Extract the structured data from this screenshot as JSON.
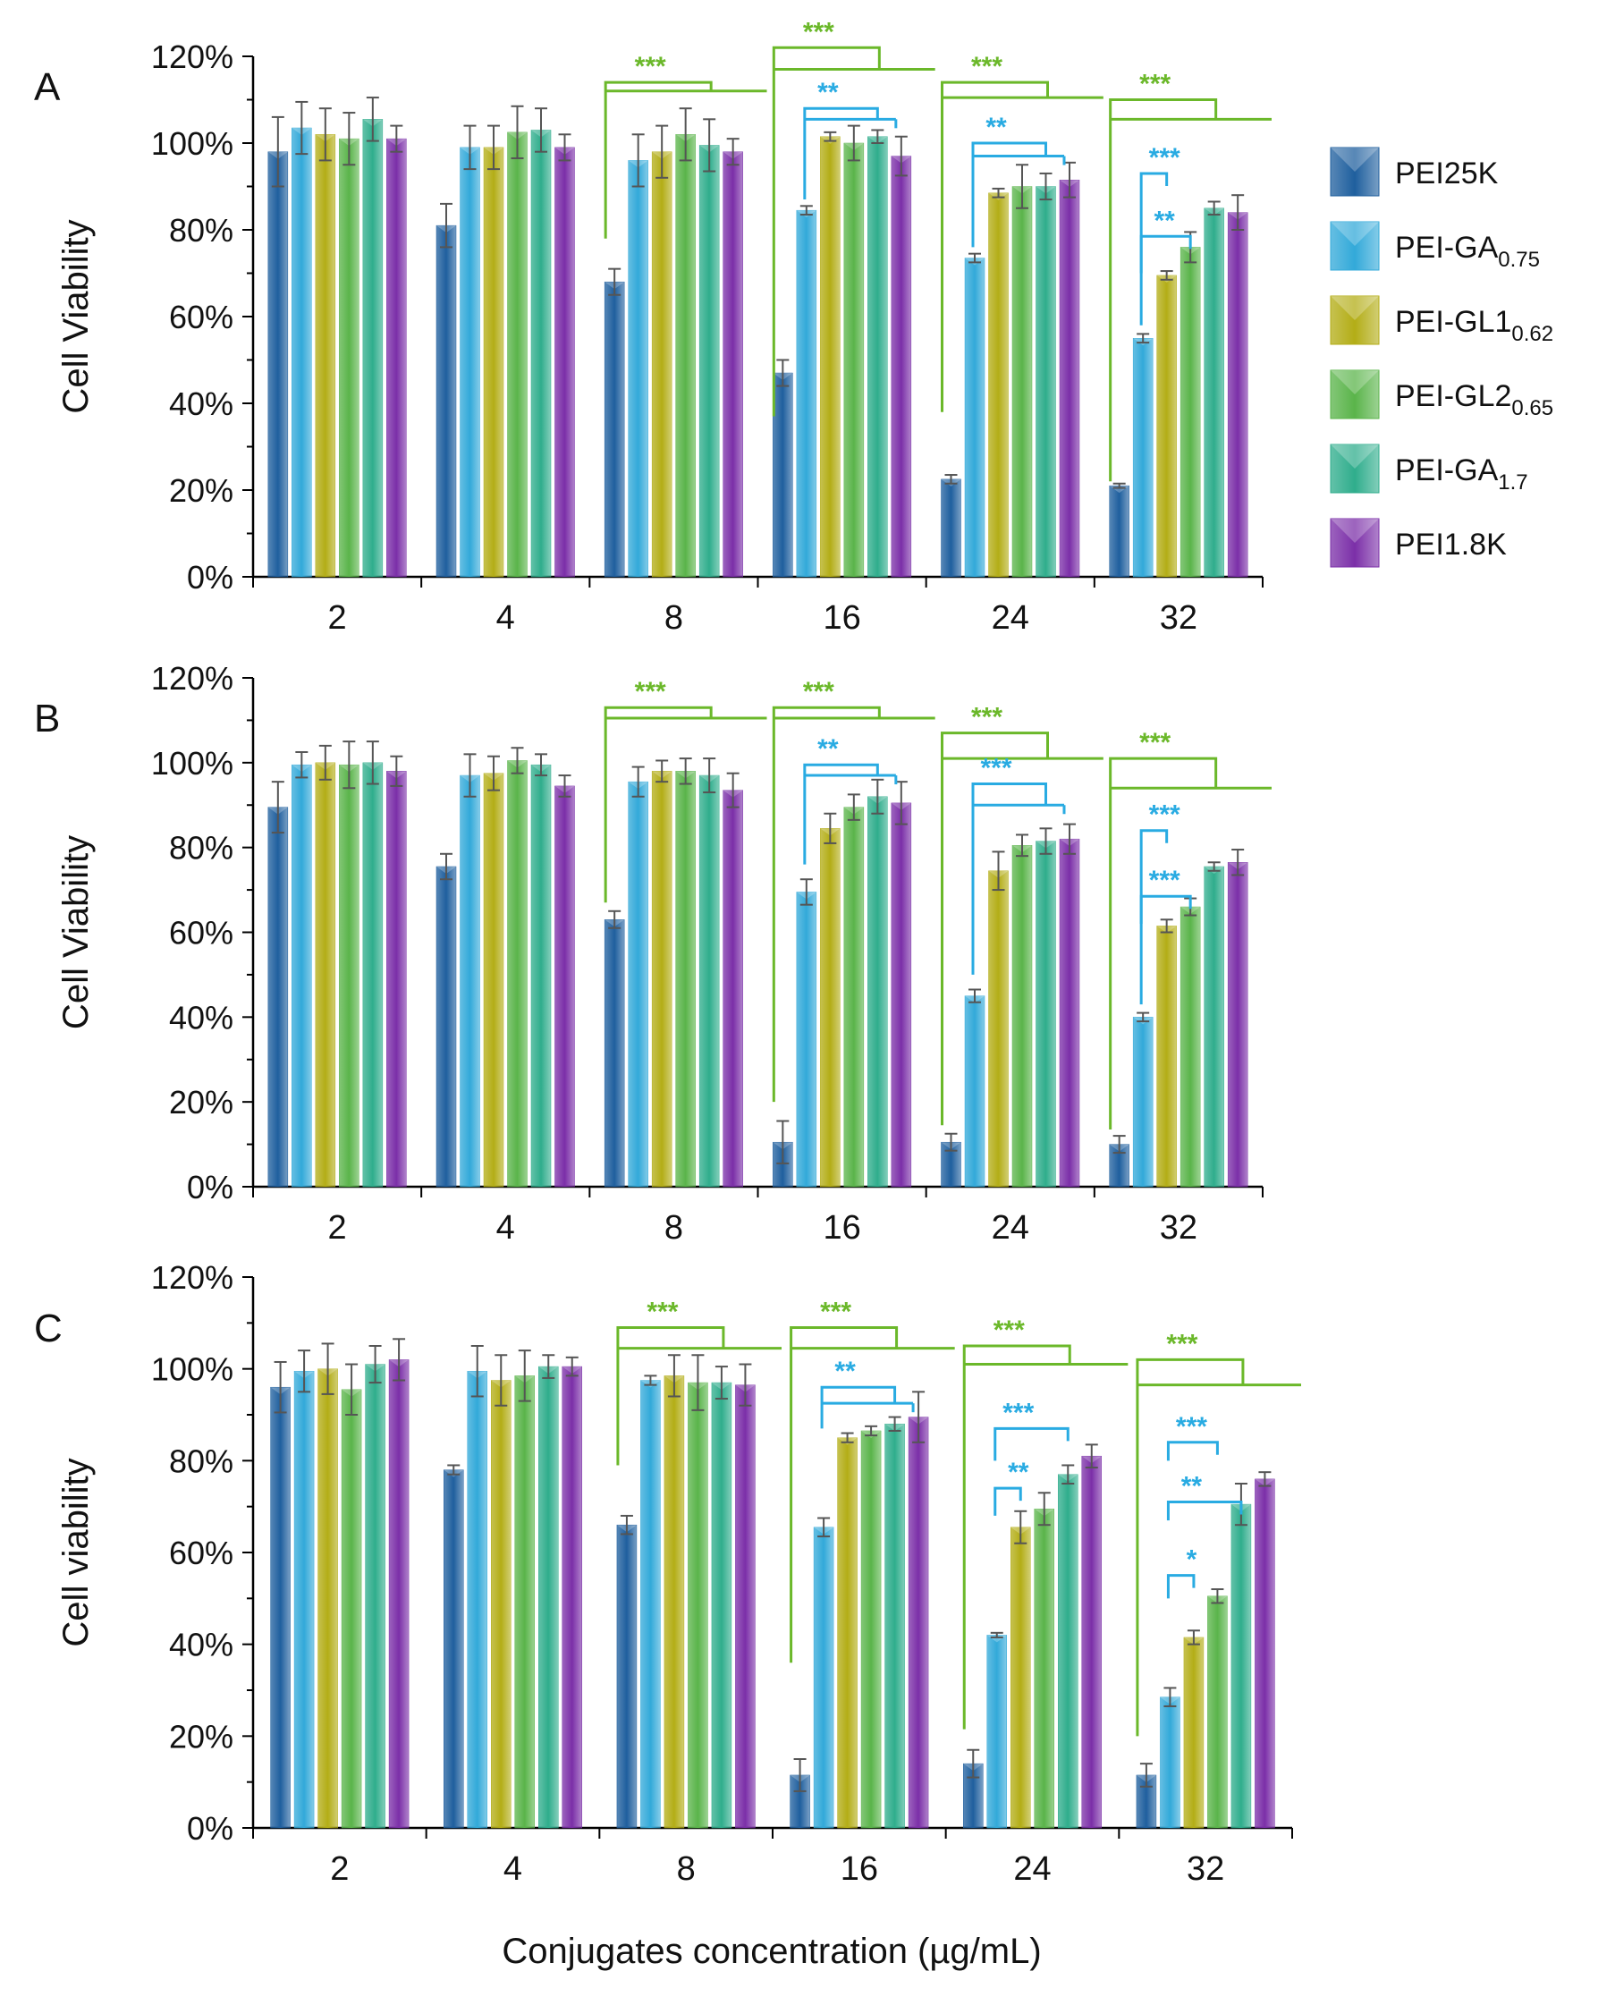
{
  "legend": {
    "entries": [
      {
        "base": "PEI25K",
        "sub": "",
        "color": "#1f5f9e"
      },
      {
        "base": "PEI-GA",
        "sub": "0.75",
        "color": "#32a9d9"
      },
      {
        "base": "PEI-GL1",
        "sub": "0.62",
        "color": "#b3ad16"
      },
      {
        "base": "PEI-GL2",
        "sub": "0.65",
        "color": "#5ab44a"
      },
      {
        "base": "PEI-GA",
        "sub": "1.7",
        "color": "#2fad8c"
      },
      {
        "base": "PEI1.8K",
        "sub": "",
        "color": "#7b2fa8"
      }
    ]
  },
  "colors": {
    "significance_green": "#6bb82a",
    "significance_blue": "#29abe2",
    "error_bar": "#555555",
    "axis": "#000000"
  },
  "shared_xlabel": "Conjugates concentration  (µg/mL)",
  "chart_data": [
    {
      "type": "bar",
      "panel_letter": "A",
      "ylabel": "Cell Viability",
      "ylim": [
        0,
        120
      ],
      "ytick_labels": [
        "0%",
        "20%",
        "40%",
        "60%",
        "80%",
        "100%",
        "120%"
      ],
      "categories": [
        "2",
        "4",
        "8",
        "16",
        "24",
        "32"
      ],
      "series": [
        {
          "name": "PEI25K",
          "values": [
            98,
            81,
            68,
            47,
            22.5,
            21
          ],
          "errors": [
            8,
            5,
            3,
            3,
            1,
            0.5
          ]
        },
        {
          "name": "PEI-GA0.75",
          "values": [
            103.5,
            99,
            96,
            84.5,
            73.5,
            55
          ],
          "errors": [
            6,
            5,
            6,
            1,
            1,
            1
          ]
        },
        {
          "name": "PEI-GL10.62",
          "values": [
            102,
            99,
            98,
            101.5,
            88.5,
            69.5
          ],
          "errors": [
            6,
            5,
            6,
            1,
            1,
            1
          ]
        },
        {
          "name": "PEI-GL20.65",
          "values": [
            101,
            102.5,
            102,
            100,
            90,
            76
          ],
          "errors": [
            6,
            6,
            6,
            4,
            5,
            3.5
          ]
        },
        {
          "name": "PEI-GA1.7",
          "values": [
            105.5,
            103,
            99.5,
            101.5,
            90,
            85
          ],
          "errors": [
            5,
            5,
            6,
            1.5,
            3,
            1.5
          ]
        },
        {
          "name": "PEI1.8K",
          "values": [
            101,
            99,
            98,
            97,
            91.5,
            84
          ],
          "errors": [
            3,
            3,
            3,
            4.5,
            4,
            4
          ]
        }
      ],
      "significance": [
        {
          "color": "green",
          "stars": "***",
          "group": 2,
          "y_top": 114,
          "y_long": 112,
          "y_start": 78,
          "long_to": 6.5
        },
        {
          "color": "green",
          "stars": "***",
          "group": 3,
          "y_top": 122,
          "y_long": 117,
          "y_start": 37,
          "long_to": 6.4
        },
        {
          "color": "blue",
          "stars": "**",
          "group": 3,
          "y_top": 108,
          "y_long": 105.5,
          "y_start": 87,
          "long_to": 5.5
        },
        {
          "color": "green",
          "stars": "***",
          "group": 4,
          "y_top": 114,
          "y_long": 110.5,
          "y_start": 38,
          "long_to": 6.5
        },
        {
          "color": "blue",
          "stars": "**",
          "group": 4,
          "y_top": 100,
          "y_long": 97,
          "y_start": 76,
          "long_to": 5.5
        },
        {
          "color": "green",
          "stars": "***",
          "group": 5,
          "y_top": 110,
          "y_long": 105.5,
          "y_start": 22,
          "long_to": 6.5
        },
        {
          "color": "blue",
          "stars": "***",
          "group": 5,
          "y_top": 93,
          "y_long": 0,
          "y_start": 58,
          "long_to": 0
        },
        {
          "color": "blue",
          "stars": "**",
          "group": 5,
          "y_top": 78.5,
          "y_long": 0,
          "y_start": 70,
          "long_to": 0
        }
      ]
    },
    {
      "type": "bar",
      "panel_letter": "B",
      "ylabel": "Cell Viability",
      "ylim": [
        0,
        120
      ],
      "ytick_labels": [
        "0%",
        "20%",
        "40%",
        "60%",
        "80%",
        "100%",
        "120%"
      ],
      "categories": [
        "2",
        "4",
        "8",
        "16",
        "24",
        "32"
      ],
      "series": [
        {
          "name": "PEI25K",
          "values": [
            89.5,
            75.5,
            63,
            10.5,
            10.5,
            10
          ],
          "errors": [
            6,
            3,
            2,
            5,
            2,
            2
          ]
        },
        {
          "name": "PEI-GA0.75",
          "values": [
            99.5,
            97,
            95.5,
            69.5,
            45,
            40
          ],
          "errors": [
            3,
            5,
            3.5,
            3,
            1.5,
            1
          ]
        },
        {
          "name": "PEI-GL10.62",
          "values": [
            100,
            97.5,
            98,
            84.5,
            74.5,
            61.5
          ],
          "errors": [
            4,
            4,
            2.5,
            3.5,
            4.5,
            1.5
          ]
        },
        {
          "name": "PEI-GL20.65",
          "values": [
            99.5,
            100.5,
            98,
            89.5,
            80.5,
            66
          ],
          "errors": [
            5.5,
            3,
            3,
            3,
            2.5,
            2
          ]
        },
        {
          "name": "PEI-GA1.7",
          "values": [
            100,
            99.5,
            97,
            92,
            81.5,
            75.5
          ],
          "errors": [
            5,
            2.5,
            4,
            4,
            3,
            1
          ]
        },
        {
          "name": "PEI1.8K",
          "values": [
            98,
            94.5,
            93.5,
            90.5,
            82,
            76.5
          ],
          "errors": [
            3.5,
            2.5,
            4,
            5,
            3.5,
            3
          ]
        }
      ],
      "significance": [
        {
          "color": "green",
          "stars": "***",
          "group": 2,
          "y_top": 113,
          "y_long": 110.5,
          "y_start": 67,
          "long_to": 6.5
        },
        {
          "color": "green",
          "stars": "***",
          "group": 3,
          "y_top": 113,
          "y_long": 110.5,
          "y_start": 20,
          "long_to": 6.5
        },
        {
          "color": "blue",
          "stars": "**",
          "group": 3,
          "y_top": 99.5,
          "y_long": 97,
          "y_start": 76,
          "long_to": 5.5
        },
        {
          "color": "green",
          "stars": "***",
          "group": 4,
          "y_top": 107,
          "y_long": 101,
          "y_start": 14.5,
          "long_to": 6.5
        },
        {
          "color": "blue",
          "stars": "***",
          "group": 4,
          "y_top": 95,
          "y_long": 90,
          "y_start": 50,
          "long_to": 5.5
        },
        {
          "color": "green",
          "stars": "***",
          "group": 5,
          "y_top": 101,
          "y_long": 94,
          "y_start": 13.5,
          "long_to": 6.5
        },
        {
          "color": "blue",
          "stars": "***",
          "group": 5,
          "y_top": 84,
          "y_long": 0,
          "y_start": 43,
          "long_to": 0
        },
        {
          "color": "blue",
          "stars": "***",
          "group": 5,
          "y_top": 68.5,
          "y_long": 0,
          "y_start": 62,
          "long_to": 0
        }
      ]
    },
    {
      "type": "bar",
      "panel_letter": "C",
      "ylabel": "Cell viability",
      "ylim": [
        0,
        120
      ],
      "ytick_labels": [
        "0%",
        "20%",
        "40%",
        "60%",
        "80%",
        "100%",
        "120%"
      ],
      "categories": [
        "2",
        "4",
        "8",
        "16",
        "24",
        "32"
      ],
      "series": [
        {
          "name": "PEI25K",
          "values": [
            96,
            78,
            66,
            11.5,
            14,
            11.5
          ],
          "errors": [
            5.5,
            1,
            2,
            3.5,
            3,
            2.5
          ]
        },
        {
          "name": "PEI-GA0.75",
          "values": [
            99.5,
            99.5,
            97.5,
            65.5,
            42,
            28.5
          ],
          "errors": [
            4.5,
            5.5,
            1,
            2,
            0.5,
            2
          ]
        },
        {
          "name": "PEI-GL10.62",
          "values": [
            100,
            97.5,
            98.5,
            85,
            65.5,
            41.5
          ],
          "errors": [
            5.5,
            5.5,
            4.5,
            1,
            3.5,
            1.5
          ]
        },
        {
          "name": "PEI-GL20.65",
          "values": [
            95.5,
            98.5,
            97,
            86.5,
            69.5,
            50.5
          ],
          "errors": [
            5.5,
            5.5,
            6,
            1,
            3.5,
            1.5
          ]
        },
        {
          "name": "PEI-GA1.7",
          "values": [
            101,
            100.5,
            97,
            88,
            77,
            70.5
          ],
          "errors": [
            4,
            2.5,
            3.5,
            1.5,
            2,
            4.5
          ]
        },
        {
          "name": "PEI1.8K",
          "values": [
            102,
            100.5,
            96.5,
            89.5,
            81,
            76
          ],
          "errors": [
            4.5,
            2,
            4.5,
            5.5,
            2.5,
            1.5
          ]
        }
      ],
      "significance": [
        {
          "color": "green",
          "stars": "***",
          "group": 2,
          "y_top": 109,
          "y_long": 104.5,
          "y_start": 79,
          "long_to": 6.5
        },
        {
          "color": "green",
          "stars": "***",
          "group": 3,
          "y_top": 109,
          "y_long": 104.5,
          "y_start": 36,
          "long_to": 6.5
        },
        {
          "color": "blue",
          "stars": "**",
          "group": 3,
          "y_top": 96,
          "y_long": 92.5,
          "y_start": 87,
          "long_to": 5.5
        },
        {
          "color": "green",
          "stars": "***",
          "group": 4,
          "y_top": 105,
          "y_long": 101,
          "y_start": 21.5,
          "long_to": 6.5
        },
        {
          "color": "blue",
          "stars": "***",
          "group": 4,
          "y_top": 87,
          "y_long": 0,
          "y_start": 80,
          "long_to": 0
        },
        {
          "color": "blue",
          "stars": "**",
          "group": 4,
          "y_top": 74,
          "y_long": 0,
          "y_start": 68,
          "long_to": 0
        },
        {
          "color": "green",
          "stars": "***",
          "group": 5,
          "y_top": 102,
          "y_long": 96.5,
          "y_start": 20,
          "long_to": 6.5
        },
        {
          "color": "blue",
          "stars": "***",
          "group": 5,
          "y_top": 84,
          "y_long": 0,
          "y_start": 80,
          "long_to": 0
        },
        {
          "color": "blue",
          "stars": "**",
          "group": 5,
          "y_top": 71,
          "y_long": 0,
          "y_start": 67,
          "long_to": 0
        },
        {
          "color": "blue",
          "stars": "*",
          "group": 5,
          "y_top": 55,
          "y_long": 0,
          "y_start": 50,
          "long_to": 0
        }
      ]
    }
  ]
}
